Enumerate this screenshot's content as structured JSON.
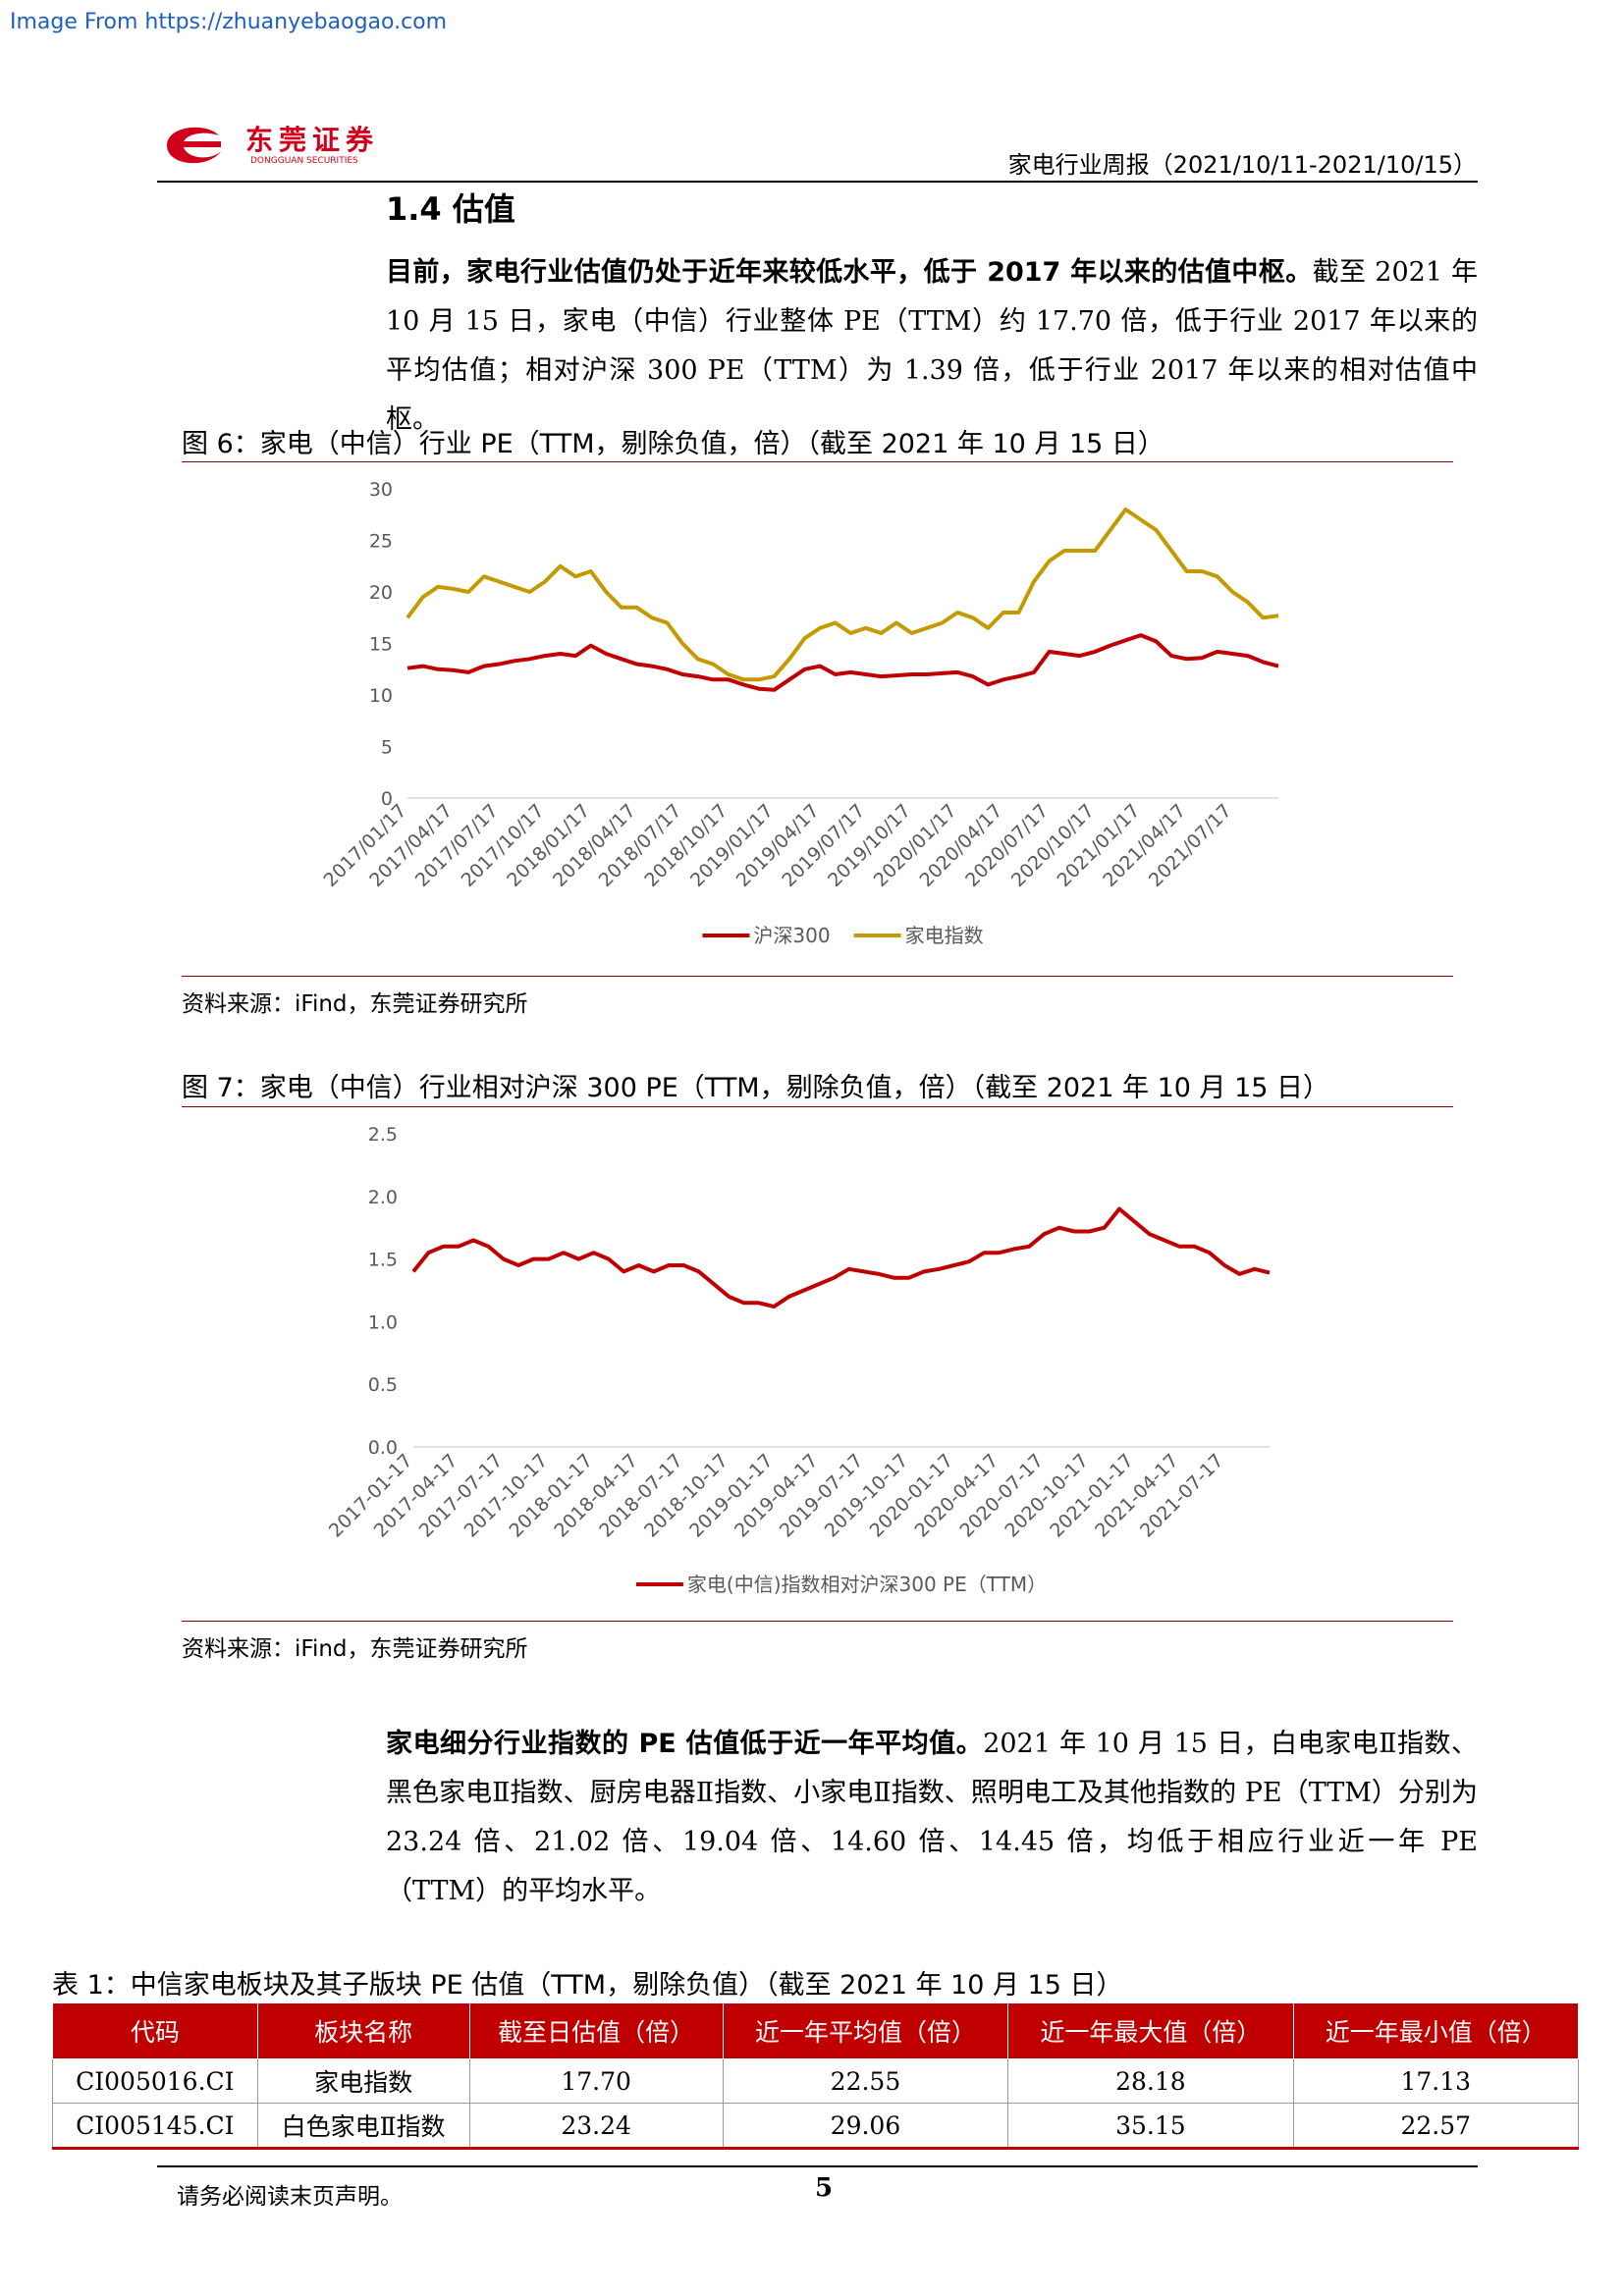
{
  "watermark": "Image From https://zhuanyebaogao.com",
  "header": {
    "logo_cn": "东莞证券",
    "logo_en": "DONGGUAN SECURITIES",
    "report": "家电行业周报（2021/10/11-2021/10/15）"
  },
  "section": {
    "title": "1.4 估值"
  },
  "paragraphs": [
    {
      "bold": "目前，家电行业估值仍处于近年来较低水平，低于 2017 年以来的估值中枢。",
      "text": "截至 2021 年 10 月 15 日，家电（中信）行业整体 PE（TTM）约 17.70 倍，低于行业 2017 年以来的平均估值；相对沪深 300 PE（TTM）为 1.39 倍，低于行业 2017 年以来的相对估值中枢。"
    },
    {
      "bold": "家电细分行业指数的 PE 估值低于近一年平均值。",
      "text": "2021 年 10 月 15 日，白电家电Ⅱ指数、黑色家电Ⅱ指数、厨房电器Ⅱ指数、小家电Ⅱ指数、照明电工及其他指数的 PE（TTM）分别为 23.24 倍、21.02 倍、19.04 倍、14.60 倍、14.45 倍，均低于相应行业近一年 PE（TTM）的平均水平。"
    }
  ],
  "chart_data": [
    {
      "type": "line",
      "title": "图 6：家电（中信）行业 PE（TTM，剔除负值，倍）（截至 2021 年 10 月 15 日）",
      "source": "资料来源：iFind，东莞证券研究所",
      "categories": [
        "2017/01/17",
        null,
        null,
        "2017/04/17",
        null,
        null,
        "2017/07/17",
        null,
        null,
        "2017/10/17",
        null,
        null,
        "2018/01/17",
        null,
        null,
        "2018/04/17",
        null,
        null,
        "2018/07/17",
        null,
        null,
        "2018/10/17",
        null,
        null,
        "2019/01/17",
        null,
        null,
        "2019/04/17",
        null,
        null,
        "2019/07/17",
        null,
        null,
        "2019/10/17",
        null,
        null,
        "2020/01/17",
        null,
        null,
        "2020/04/17",
        null,
        null,
        "2020/07/17",
        null,
        null,
        "2020/10/17",
        null,
        null,
        "2021/01/17",
        null,
        null,
        "2021/04/17",
        null,
        null,
        "2021/07/17",
        null,
        null,
        null
      ],
      "series": [
        {
          "name": "沪深300",
          "color": "#c00000",
          "values": [
            12.6,
            12.8,
            12.5,
            12.4,
            12.2,
            12.8,
            13.0,
            13.3,
            13.5,
            13.8,
            14.0,
            13.8,
            14.8,
            14.0,
            13.5,
            13.0,
            12.8,
            12.5,
            12.0,
            11.8,
            11.5,
            11.5,
            11.0,
            10.6,
            10.5,
            11.5,
            12.5,
            12.8,
            12.0,
            12.2,
            12.0,
            11.8,
            11.9,
            12.0,
            12.0,
            12.1,
            12.2,
            11.8,
            11.0,
            11.5,
            11.8,
            12.2,
            14.2,
            14.0,
            13.8,
            14.2,
            14.8,
            15.3,
            15.8,
            15.2,
            13.8,
            13.5,
            13.6,
            14.2,
            14.0,
            13.8,
            13.2,
            12.8
          ]
        },
        {
          "name": "家电指数",
          "color": "#c49a00",
          "values": [
            17.5,
            19.5,
            20.5,
            20.3,
            20.0,
            21.5,
            21.0,
            20.5,
            20.0,
            21.0,
            22.5,
            21.5,
            22.0,
            20.0,
            18.5,
            18.5,
            17.5,
            17.0,
            15.0,
            13.5,
            13.0,
            12.0,
            11.5,
            11.5,
            11.8,
            13.5,
            15.5,
            16.5,
            17.0,
            16.0,
            16.5,
            16.0,
            17.0,
            16.0,
            16.5,
            17.0,
            18.0,
            17.5,
            16.5,
            18.0,
            18.0,
            21.0,
            23.0,
            24.0,
            24.0,
            24.0,
            26.0,
            28.0,
            27.0,
            26.0,
            24.0,
            22.0,
            22.0,
            21.5,
            20.0,
            19.0,
            17.5,
            17.7
          ]
        }
      ],
      "ylim": [
        0,
        30
      ],
      "yticks": [
        0,
        5,
        10,
        15,
        20,
        25,
        30
      ],
      "grid": false,
      "legend": "bottom"
    },
    {
      "type": "line",
      "title": "图 7：家电（中信）行业相对沪深 300 PE（TTM，剔除负值，倍）（截至 2021 年 10 月 15 日）",
      "source": "资料来源：iFind，东莞证券研究所",
      "categories": [
        "2017-01-17",
        null,
        null,
        "2017-04-17",
        null,
        null,
        "2017-07-17",
        null,
        null,
        "2017-10-17",
        null,
        null,
        "2018-01-17",
        null,
        null,
        "2018-04-17",
        null,
        null,
        "2018-07-17",
        null,
        null,
        "2018-10-17",
        null,
        null,
        "2019-01-17",
        null,
        null,
        "2019-04-17",
        null,
        null,
        "2019-07-17",
        null,
        null,
        "2019-10-17",
        null,
        null,
        "2020-01-17",
        null,
        null,
        "2020-04-17",
        null,
        null,
        "2020-07-17",
        null,
        null,
        "2020-10-17",
        null,
        null,
        "2021-01-17",
        null,
        null,
        "2021-04-17",
        null,
        null,
        "2021-07-17",
        null,
        null,
        null
      ],
      "series": [
        {
          "name": "家电(中信)指数相对沪深300 PE（TTM）",
          "color": "#c00000",
          "values": [
            1.4,
            1.55,
            1.6,
            1.6,
            1.65,
            1.6,
            1.5,
            1.45,
            1.5,
            1.5,
            1.55,
            1.5,
            1.55,
            1.5,
            1.4,
            1.45,
            1.4,
            1.45,
            1.45,
            1.4,
            1.3,
            1.2,
            1.15,
            1.15,
            1.12,
            1.2,
            1.25,
            1.3,
            1.35,
            1.42,
            1.4,
            1.38,
            1.35,
            1.35,
            1.4,
            1.42,
            1.45,
            1.48,
            1.55,
            1.55,
            1.58,
            1.6,
            1.7,
            1.75,
            1.72,
            1.72,
            1.75,
            1.9,
            1.8,
            1.7,
            1.65,
            1.6,
            1.6,
            1.55,
            1.45,
            1.38,
            1.42,
            1.39
          ]
        }
      ],
      "ylim": [
        0,
        2.5
      ],
      "yticks": [
        {
          "value": 0,
          "label": "0.0"
        },
        0.5,
        {
          "value": 1,
          "label": "1.0"
        },
        1.5,
        {
          "value": 2,
          "label": "2.0"
        },
        2.5
      ],
      "grid": false,
      "legend": "bottom"
    }
  ],
  "table": {
    "caption": "表 1：中信家电板块及其子版块 PE 估值（TTM，剔除负值）（截至 2021 年 10 月 15 日）",
    "header": [
      "代码",
      "板块名称",
      "截至日估值（倍）",
      "近一年平均值（倍）",
      "近一年最大值（倍）",
      "近一年最小值（倍）"
    ],
    "rows": [
      [
        "CI005016.CI",
        "家电指数",
        "17.70",
        "22.55",
        "28.18",
        "17.13"
      ],
      [
        "CI005145.CI",
        "白色家电Ⅱ指数",
        "23.24",
        "29.06",
        "35.15",
        "22.57"
      ]
    ]
  },
  "footer": {
    "disclaimer": "请务必阅读末页声明。",
    "page": "5"
  }
}
